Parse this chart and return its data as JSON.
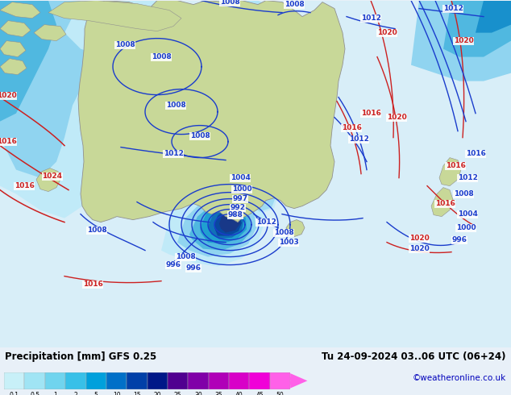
{
  "title_left": "Precipitation [mm] GFS 0.25",
  "title_right": "Tu 24-09-2024 03..06 UTC (06+24)",
  "credit": "©weatheronline.co.uk",
  "colorbar_levels": [
    0.1,
    0.5,
    1,
    2,
    5,
    10,
    15,
    20,
    25,
    30,
    35,
    40,
    45,
    50
  ],
  "colorbar_colors": [
    "#c8f0f8",
    "#a0e4f4",
    "#70d4ee",
    "#38c0e8",
    "#00a0dc",
    "#0070c8",
    "#0040a8",
    "#001888",
    "#500090",
    "#8000a8",
    "#b000b8",
    "#d800c8",
    "#f000d8",
    "#ff60e8"
  ],
  "ocean_color": "#d8eef8",
  "land_color": "#c8d898",
  "land_edge": "#909090",
  "isobar_blue": "#1a3ccc",
  "isobar_red": "#cc2020",
  "precip_light1": "#c8eef8",
  "precip_light2": "#90d8f0",
  "precip_mid1": "#50c0e8",
  "precip_mid2": "#20a0d8",
  "precip_dark1": "#1070c0",
  "precip_dark2": "#0840a0",
  "precip_darkest": "#183888",
  "bg_bottom": "#e8f0f8",
  "label_color_blue": "#1a3ccc",
  "label_color_red": "#cc2020",
  "credit_color": "#0000bb",
  "isobar_lw": 1.0,
  "isobar_fontsize": 6.5
}
